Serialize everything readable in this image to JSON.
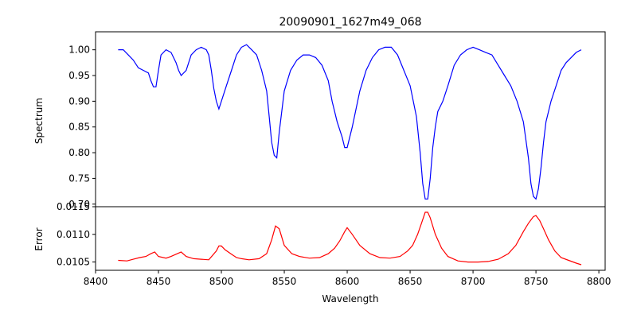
{
  "chart_data": [
    {
      "type": "line",
      "title": "20090901_1627m49_068",
      "xlabel": "",
      "ylabel": "Spectrum",
      "xlim": [
        8400,
        8805
      ],
      "ylim": [
        0.695,
        1.035
      ],
      "yticks": [
        "0.70",
        "0.75",
        "0.80",
        "0.85",
        "0.90",
        "0.95",
        "1.00"
      ],
      "grid": false,
      "series": [
        {
          "color": "#0000ff",
          "x": [
            8418,
            8422,
            8426,
            8430,
            8434,
            8438,
            8442,
            8444,
            8446,
            8448,
            8450,
            8452,
            8456,
            8460,
            8464,
            8466,
            8468,
            8472,
            8476,
            8480,
            8484,
            8488,
            8490,
            8492,
            8494,
            8496,
            8498,
            8500,
            8504,
            8508,
            8512,
            8516,
            8520,
            8524,
            8528,
            8532,
            8536,
            8538,
            8540,
            8542,
            8544,
            8546,
            8550,
            8555,
            8560,
            8565,
            8570,
            8575,
            8580,
            8585,
            8588,
            8592,
            8596,
            8598,
            8600,
            8604,
            8610,
            8615,
            8620,
            8625,
            8630,
            8635,
            8640,
            8645,
            8650,
            8655,
            8658,
            8660,
            8662,
            8664,
            8666,
            8668,
            8670,
            8672,
            8676,
            8680,
            8685,
            8690,
            8695,
            8700,
            8705,
            8710,
            8715,
            8720,
            8725,
            8730,
            8735,
            8740,
            8744,
            8746,
            8748,
            8750,
            8752,
            8754,
            8756,
            8758,
            8762,
            8766,
            8770,
            8774,
            8778,
            8782,
            8786
          ],
          "y": [
            1.0,
            1.0,
            0.99,
            0.98,
            0.965,
            0.96,
            0.955,
            0.94,
            0.928,
            0.928,
            0.96,
            0.99,
            1.0,
            0.995,
            0.975,
            0.96,
            0.95,
            0.96,
            0.99,
            1.0,
            1.005,
            1.0,
            0.99,
            0.96,
            0.925,
            0.9,
            0.885,
            0.9,
            0.93,
            0.96,
            0.99,
            1.005,
            1.01,
            1.0,
            0.99,
            0.96,
            0.92,
            0.87,
            0.82,
            0.795,
            0.79,
            0.84,
            0.92,
            0.96,
            0.98,
            0.99,
            0.99,
            0.985,
            0.97,
            0.94,
            0.9,
            0.86,
            0.83,
            0.81,
            0.81,
            0.85,
            0.92,
            0.96,
            0.985,
            1.0,
            1.005,
            1.005,
            0.99,
            0.96,
            0.93,
            0.87,
            0.8,
            0.74,
            0.71,
            0.71,
            0.75,
            0.81,
            0.85,
            0.88,
            0.9,
            0.93,
            0.97,
            0.99,
            1.0,
            1.005,
            1.0,
            0.995,
            0.99,
            0.97,
            0.95,
            0.93,
            0.9,
            0.86,
            0.79,
            0.74,
            0.715,
            0.71,
            0.73,
            0.77,
            0.82,
            0.86,
            0.9,
            0.93,
            0.96,
            0.975,
            0.985,
            0.995,
            1.0
          ]
        }
      ]
    },
    {
      "type": "line",
      "title": "",
      "xlabel": "Wavelength",
      "ylabel": "Error",
      "xlim": [
        8400,
        8805
      ],
      "ylim": [
        0.01035,
        0.0115
      ],
      "yticks": [
        "0.0105",
        "0.0110",
        "0.0115"
      ],
      "xticks": [
        "8400",
        "8450",
        "8500",
        "8550",
        "8600",
        "8650",
        "8700",
        "8750",
        "8800"
      ],
      "grid": false,
      "series": [
        {
          "color": "#ff0000",
          "x": [
            8418,
            8425,
            8430,
            8435,
            8440,
            8444,
            8447,
            8450,
            8456,
            8460,
            8465,
            8468,
            8472,
            8478,
            8484,
            8490,
            8496,
            8498,
            8500,
            8503,
            8508,
            8512,
            8516,
            8522,
            8530,
            8536,
            8540,
            8543,
            8546,
            8550,
            8556,
            8562,
            8570,
            8578,
            8585,
            8590,
            8594,
            8598,
            8600,
            8604,
            8610,
            8618,
            8626,
            8634,
            8642,
            8648,
            8652,
            8656,
            8659,
            8662,
            8664,
            8666,
            8670,
            8675,
            8680,
            8688,
            8696,
            8704,
            8712,
            8720,
            8728,
            8734,
            8740,
            8744,
            8748,
            8750,
            8753,
            8756,
            8760,
            8765,
            8770,
            8776,
            8782,
            8786
          ],
          "y": [
            0.01053,
            0.01052,
            0.01055,
            0.01058,
            0.0106,
            0.01065,
            0.01068,
            0.0106,
            0.01057,
            0.0106,
            0.01065,
            0.01068,
            0.0106,
            0.01056,
            0.01055,
            0.01054,
            0.0107,
            0.01079,
            0.01079,
            0.01072,
            0.01064,
            0.01058,
            0.01056,
            0.01054,
            0.01056,
            0.01065,
            0.0109,
            0.01115,
            0.0111,
            0.0108,
            0.01065,
            0.0106,
            0.01057,
            0.01058,
            0.01065,
            0.01075,
            0.01088,
            0.01105,
            0.01112,
            0.011,
            0.0108,
            0.01065,
            0.01058,
            0.01057,
            0.0106,
            0.0107,
            0.0108,
            0.011,
            0.0112,
            0.0114,
            0.0114,
            0.0113,
            0.011,
            0.01075,
            0.0106,
            0.01052,
            0.0105,
            0.0105,
            0.01051,
            0.01055,
            0.01065,
            0.0108,
            0.01105,
            0.0112,
            0.01132,
            0.01134,
            0.01125,
            0.0111,
            0.0109,
            0.0107,
            0.01058,
            0.01053,
            0.01048,
            0.01045
          ]
        }
      ]
    }
  ]
}
